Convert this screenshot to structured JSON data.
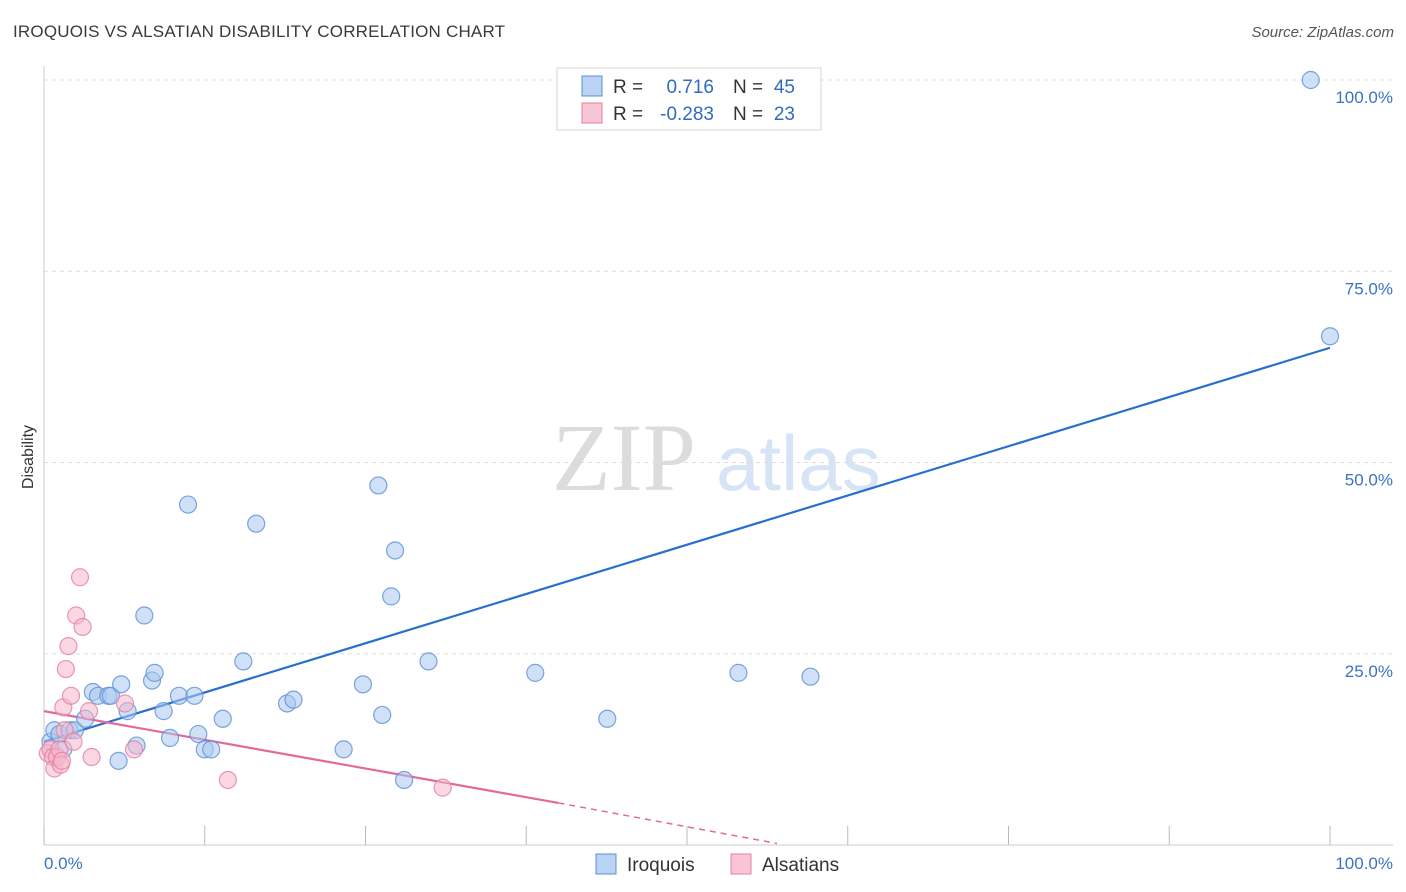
{
  "title": "IROQUOIS VS ALSATIAN DISABILITY CORRELATION CHART",
  "source": "Source: ZipAtlas.com",
  "watermark": {
    "zip": "ZIP",
    "atlas": "atlas"
  },
  "colors": {
    "iroquois_fill": "#a9c8f0",
    "iroquois_stroke": "#5b8fd6",
    "iroquois_line": "#2a6fcf",
    "alsatians_fill": "#f6b7cb",
    "alsatians_stroke": "#e47fa2",
    "alsatians_line": "#e2699a",
    "tick": "#3b73c4"
  },
  "legend": {
    "r_label": "R =",
    "n_label": "N =",
    "rows": [
      {
        "series": "Iroquois",
        "r": "0.716",
        "n": "45"
      },
      {
        "series": "Alsatians",
        "r": "-0.283",
        "n": "23"
      }
    ]
  },
  "chart_data": {
    "type": "scatter",
    "title": "IROQUOIS VS ALSATIAN DISABILITY CORRELATION CHART",
    "xlabel": "",
    "ylabel": "Disability",
    "xlim": [
      0,
      100
    ],
    "ylim": [
      0,
      100
    ],
    "x_tick_labels": [
      "0.0%",
      "100.0%"
    ],
    "y_ticks": [
      25,
      50,
      75,
      100
    ],
    "y_tick_labels": [
      "25.0%",
      "50.0%",
      "75.0%",
      "100.0%"
    ],
    "grid": true,
    "legend_position": "top-center",
    "series": [
      {
        "name": "Iroquois",
        "points": [
          [
            0.5,
            13.5
          ],
          [
            0.8,
            15
          ],
          [
            1.2,
            14.5
          ],
          [
            1.5,
            12.5
          ],
          [
            2.0,
            15
          ],
          [
            2.4,
            15
          ],
          [
            3.2,
            16.5
          ],
          [
            3.8,
            20
          ],
          [
            4.2,
            19.5
          ],
          [
            5.0,
            19.5
          ],
          [
            5.2,
            19.5
          ],
          [
            5.8,
            11
          ],
          [
            6.0,
            21
          ],
          [
            6.5,
            17.5
          ],
          [
            7.2,
            13
          ],
          [
            7.8,
            30
          ],
          [
            8.4,
            21.5
          ],
          [
            8.6,
            22.5
          ],
          [
            9.3,
            17.5
          ],
          [
            9.8,
            14
          ],
          [
            10.5,
            19.5
          ],
          [
            11.2,
            44.5
          ],
          [
            11.7,
            19.5
          ],
          [
            12.0,
            14.5
          ],
          [
            12.5,
            12.5
          ],
          [
            13.0,
            12.5
          ],
          [
            13.9,
            16.5
          ],
          [
            15.5,
            24
          ],
          [
            16.5,
            42
          ],
          [
            18.9,
            18.5
          ],
          [
            19.4,
            19
          ],
          [
            23.3,
            12.5
          ],
          [
            24.8,
            21
          ],
          [
            26.0,
            47
          ],
          [
            26.3,
            17
          ],
          [
            27.0,
            32.5
          ],
          [
            27.3,
            38.5
          ],
          [
            28.0,
            8.5
          ],
          [
            29.9,
            24
          ],
          [
            38.2,
            22.5
          ],
          [
            43.8,
            16.5
          ],
          [
            54.0,
            22.5
          ],
          [
            59.6,
            22
          ],
          [
            98.5,
            100
          ],
          [
            100.0,
            66.5
          ]
        ],
        "trend": {
          "x0": 0,
          "y0": 13.5,
          "x1": 100,
          "y1": 65
        }
      },
      {
        "name": "Alsatians",
        "points": [
          [
            0.3,
            12
          ],
          [
            0.5,
            12.5
          ],
          [
            0.7,
            11.5
          ],
          [
            0.8,
            10
          ],
          [
            1.0,
            11.5
          ],
          [
            1.2,
            12.5
          ],
          [
            1.3,
            10.5
          ],
          [
            1.4,
            11
          ],
          [
            1.5,
            18
          ],
          [
            1.6,
            15
          ],
          [
            1.7,
            23
          ],
          [
            1.9,
            26
          ],
          [
            2.1,
            19.5
          ],
          [
            2.3,
            13.5
          ],
          [
            2.5,
            30
          ],
          [
            2.8,
            35
          ],
          [
            3.0,
            28.5
          ],
          [
            3.5,
            17.5
          ],
          [
            3.7,
            11.5
          ],
          [
            6.3,
            18.5
          ],
          [
            7.0,
            12.5
          ],
          [
            14.3,
            8.5
          ],
          [
            31.0,
            7.5
          ]
        ],
        "trend": {
          "x0": 0,
          "y0": 17.5,
          "x1": 40,
          "y1": 5.5
        },
        "trend_extension": {
          "x0": 40,
          "y0": 5.5,
          "x1": 57,
          "y1": 0.2
        }
      }
    ]
  },
  "bottom_legend": [
    {
      "series": "Iroquois",
      "label": "Iroquois"
    },
    {
      "series": "Alsatians",
      "label": "Alsatians"
    }
  ]
}
